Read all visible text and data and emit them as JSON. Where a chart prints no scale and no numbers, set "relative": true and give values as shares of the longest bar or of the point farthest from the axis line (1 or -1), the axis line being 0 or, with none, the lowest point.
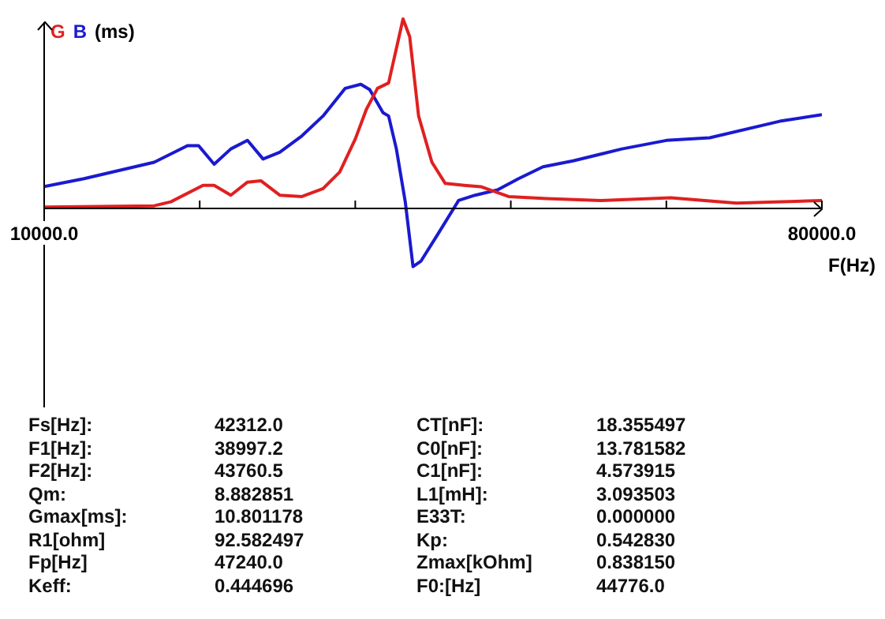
{
  "chart_data": {
    "type": "line",
    "relative": true,
    "xlabel": "F(Hz)",
    "ylabel": "(ms)",
    "legend": "top left",
    "marker": "none",
    "grid": false,
    "xlim": [
      10000,
      80000
    ],
    "xticks": [
      {
        "value": 10000,
        "label": "10000.0"
      },
      {
        "value": 24000,
        "label": null
      },
      {
        "value": 38000,
        "label": null
      },
      {
        "value": 52000,
        "label": null
      },
      {
        "value": 66000,
        "label": null
      },
      {
        "value": 80000,
        "label": "80000.0"
      }
    ],
    "series": [
      {
        "name": "G",
        "color": "#e02020",
        "x": [
          10000,
          19900,
          21400,
          24300,
          25300,
          26800,
          28300,
          29500,
          31200,
          33200,
          35100,
          36600,
          38000,
          39000,
          40000,
          41000,
          42300,
          42900,
          43700,
          44900,
          46100,
          47800,
          49300,
          51800,
          55200,
          60100,
          66400,
          72300,
          80000
        ],
        "values": [
          0.007,
          0.014,
          0.035,
          0.122,
          0.122,
          0.07,
          0.139,
          0.146,
          0.07,
          0.063,
          0.105,
          0.192,
          0.366,
          0.523,
          0.634,
          0.662,
          1.0,
          0.906,
          0.488,
          0.244,
          0.132,
          0.122,
          0.115,
          0.063,
          0.052,
          0.042,
          0.056,
          0.028,
          0.042
        ]
      },
      {
        "name": "B",
        "color": "#1a1ad0",
        "x": [
          10000,
          13600,
          19900,
          22900,
          23900,
          25300,
          26800,
          28300,
          29700,
          31200,
          33200,
          35100,
          37100,
          38500,
          39300,
          40500,
          41000,
          41700,
          42500,
          43200,
          43900,
          45400,
          47300,
          48800,
          50800,
          52700,
          54900,
          57600,
          62000,
          66000,
          69900,
          76200,
          80000
        ],
        "values": [
          0.115,
          0.157,
          0.244,
          0.331,
          0.331,
          0.233,
          0.314,
          0.359,
          0.261,
          0.296,
          0.383,
          0.488,
          0.634,
          0.655,
          0.627,
          0.505,
          0.488,
          0.314,
          0.035,
          -0.307,
          -0.279,
          -0.139,
          0.042,
          0.07,
          0.098,
          0.157,
          0.22,
          0.251,
          0.314,
          0.359,
          0.373,
          0.46,
          0.495
        ]
      }
    ],
    "annotations": [
      "Fs[Hz]:",
      "42312.0",
      "CT[nF]:",
      "18.355497",
      "F1[Hz]:",
      "38997.2",
      "C0[nF]:",
      "13.781582",
      "F2[Hz]:",
      "43760.5",
      "C1[nF]:",
      "4.573915",
      "Qm:",
      "8.882851",
      "L1[mH]:",
      "3.093503",
      "Gmax[ms]:",
      "10.801178",
      "E33T:",
      "0.000000",
      "R1[ohm]",
      "92.582497",
      "Kp:",
      "0.542830",
      "Fp[Hz]",
      "47240.0",
      "Zmax[kOhm]",
      "0.838150",
      "Keff:",
      "0.444696",
      "F0:[Hz]",
      "44776.0"
    ]
  }
}
